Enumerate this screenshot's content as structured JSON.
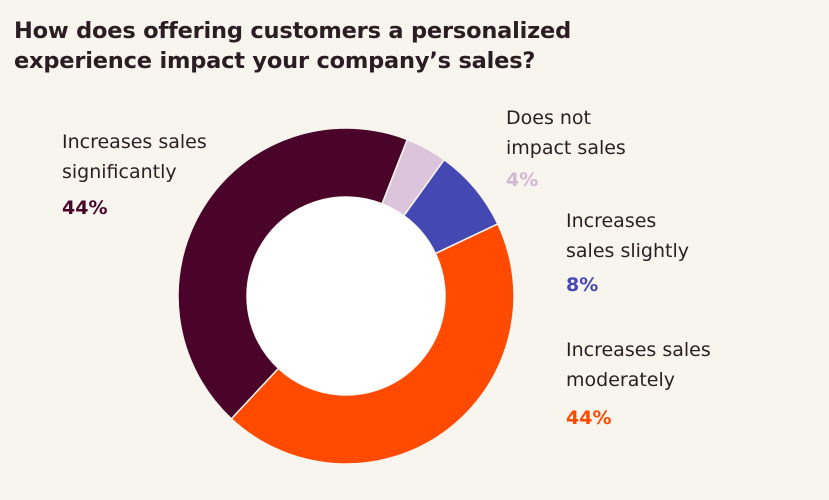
{
  "chart_data": {
    "type": "pie",
    "variant": "donut",
    "title_lines": [
      "How does offering customers a personalized",
      "experience impact your company’s sales?"
    ],
    "slices": [
      {
        "name": "Increases sales significantly",
        "label_lines": [
          "Increases sales",
          "significantly"
        ],
        "value": 44,
        "value_label": "44%",
        "color": "#4a0429"
      },
      {
        "name": "Does not impact sales",
        "label_lines": [
          "Does not",
          "impact sales"
        ],
        "value": 4,
        "value_label": "4%",
        "color": "#dcc5dc"
      },
      {
        "name": "Increases sales slightly",
        "label_lines": [
          "Increases",
          "sales slightly"
        ],
        "value": 8,
        "value_label": "8%",
        "color": "#4448b3"
      },
      {
        "name": "Increases sales moderately",
        "label_lines": [
          "Increases sales",
          "moderately"
        ],
        "value": 44,
        "value_label": "44%",
        "color": "#ff4a00"
      }
    ]
  }
}
